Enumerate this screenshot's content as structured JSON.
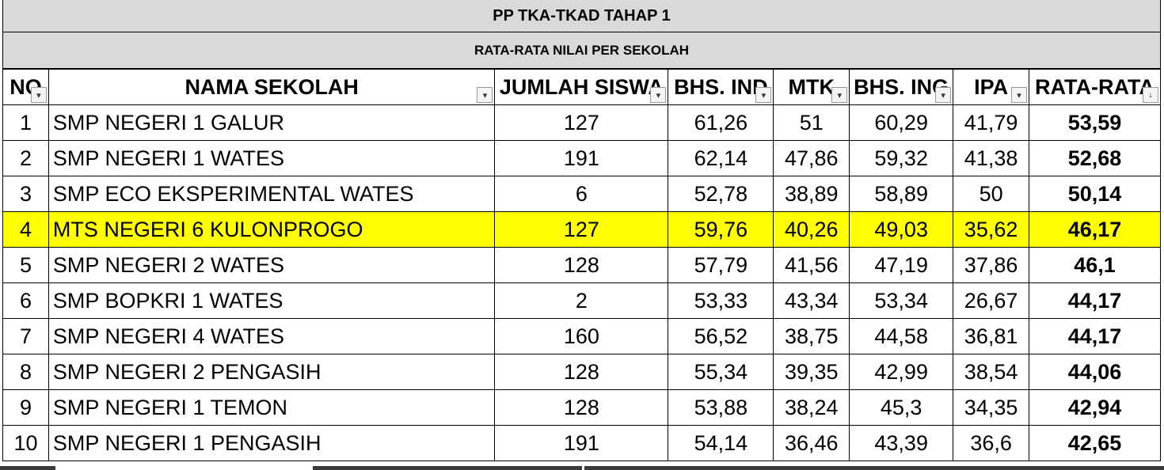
{
  "sheet": {
    "title": "PP TKA-TKAD TAHAP 1",
    "subtitle": "RATA-RATA NILAI PER SEKOLAH",
    "headers": [
      {
        "label": "NO",
        "filter_icon": "filter-dropdown-icon"
      },
      {
        "label": "NAMA SEKOLAH",
        "filter_icon": "filter-dropdown-icon"
      },
      {
        "label": "JUMLAH SISWA",
        "filter_icon": "filter-dropdown-icon"
      },
      {
        "label": "BHS. IND",
        "filter_icon": "filter-dropdown-icon"
      },
      {
        "label": "MTK",
        "filter_icon": "filter-dropdown-icon"
      },
      {
        "label": "BHS. ING",
        "filter_icon": "filter-dropdown-icon"
      },
      {
        "label": "IPA",
        "filter_icon": "filter-dropdown-icon"
      },
      {
        "label": "RATA-RATA",
        "filter_icon": "sort-descending-filter-icon"
      }
    ],
    "highlight_color": "#ffff00",
    "header_background": "#d9d9d9",
    "rows": [
      {
        "no": "1",
        "nama": "SMP NEGERI 1 GALUR",
        "jumlah": "127",
        "bind": "61,26",
        "mtk": "51",
        "bing": "60,29",
        "ipa": "41,79",
        "rata": "53,59",
        "highlighted": false
      },
      {
        "no": "2",
        "nama": "SMP NEGERI 1 WATES",
        "jumlah": "191",
        "bind": "62,14",
        "mtk": "47,86",
        "bing": "59,32",
        "ipa": "41,38",
        "rata": "52,68",
        "highlighted": false
      },
      {
        "no": "3",
        "nama": "SMP ECO EKSPERIMENTAL WATES",
        "jumlah": "6",
        "bind": "52,78",
        "mtk": "38,89",
        "bing": "58,89",
        "ipa": "50",
        "rata": "50,14",
        "highlighted": false
      },
      {
        "no": "4",
        "nama": "MTS NEGERI 6 KULONPROGO",
        "jumlah": "127",
        "bind": "59,76",
        "mtk": "40,26",
        "bing": "49,03",
        "ipa": "35,62",
        "rata": "46,17",
        "highlighted": true
      },
      {
        "no": "5",
        "nama": "SMP NEGERI 2 WATES",
        "jumlah": "128",
        "bind": "57,79",
        "mtk": "41,56",
        "bing": "47,19",
        "ipa": "37,86",
        "rata": "46,1",
        "highlighted": false
      },
      {
        "no": "6",
        "nama": "SMP BOPKRI 1 WATES",
        "jumlah": "2",
        "bind": "53,33",
        "mtk": "43,34",
        "bing": "53,34",
        "ipa": "26,67",
        "rata": "44,17",
        "highlighted": false
      },
      {
        "no": "7",
        "nama": "SMP NEGERI 4 WATES",
        "jumlah": "160",
        "bind": "56,52",
        "mtk": "38,75",
        "bing": "44,58",
        "ipa": "36,81",
        "rata": "44,17",
        "highlighted": false
      },
      {
        "no": "8",
        "nama": "SMP NEGERI 2 PENGASIH",
        "jumlah": "128",
        "bind": "55,34",
        "mtk": "39,35",
        "bing": "42,99",
        "ipa": "38,54",
        "rata": "44,06",
        "highlighted": false
      },
      {
        "no": "9",
        "nama": "SMP NEGERI 1 TEMON",
        "jumlah": "128",
        "bind": "53,88",
        "mtk": "38,24",
        "bing": "45,3",
        "ipa": "34,35",
        "rata": "42,94",
        "highlighted": false
      },
      {
        "no": "10",
        "nama": "SMP NEGERI 1 PENGASIH",
        "jumlah": "191",
        "bind": "54,14",
        "mtk": "36,46",
        "bing": "43,39",
        "ipa": "36,6",
        "rata": "42,65",
        "highlighted": false
      }
    ]
  }
}
